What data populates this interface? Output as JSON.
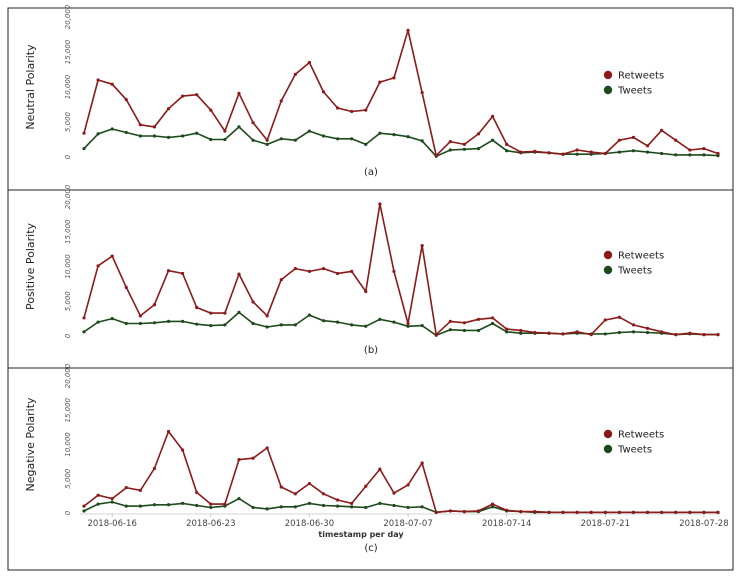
{
  "chart_data": [
    {
      "type": "line",
      "caption": "(a)",
      "ylabel": "Neutral Polarity",
      "xlabel": "",
      "ylim": [
        0,
        20000
      ],
      "yticks": [
        "0",
        "5,000",
        "10,000",
        "15,000",
        "20,000"
      ],
      "ytick_values": [
        0,
        5000,
        10000,
        15000,
        20000
      ],
      "legend": [
        "Retweets",
        "Tweets"
      ],
      "series": [
        {
          "name": "Retweets",
          "color": "#8b1a1a",
          "values": [
            3400,
            11000,
            10400,
            8200,
            4600,
            4300,
            6900,
            8700,
            8900,
            6700,
            3700,
            9100,
            4900,
            2400,
            8000,
            11800,
            13500,
            9300,
            7000,
            6500,
            6700,
            10700,
            11300,
            18100,
            9200,
            200,
            2200,
            1800,
            3300,
            5800,
            1800,
            700,
            800,
            600,
            400,
            1000,
            700,
            500,
            2400,
            2800,
            1600,
            3800,
            2400,
            1000,
            1200,
            500
          ]
        },
        {
          "name": "Tweets",
          "color": "#1d4a1d",
          "values": [
            1200,
            3300,
            4000,
            3500,
            3000,
            3000,
            2800,
            3000,
            3400,
            2500,
            2500,
            4300,
            2400,
            1800,
            2600,
            2400,
            3700,
            3000,
            2600,
            2600,
            1800,
            3400,
            3200,
            2900,
            2300,
            100,
            1000,
            1100,
            1200,
            2400,
            900,
            600,
            700,
            600,
            400,
            400,
            400,
            500,
            700,
            900,
            700,
            500,
            300,
            300,
            300,
            200
          ]
        }
      ]
    },
    {
      "type": "line",
      "caption": "(b)",
      "ylabel": "Positive Polarity",
      "xlabel": "",
      "ylim": [
        0,
        20000
      ],
      "yticks": [
        "0",
        "5,000",
        "10,000",
        "15,000",
        "20,000"
      ],
      "ytick_values": [
        0,
        5000,
        10000,
        15000,
        20000
      ],
      "legend": [
        "Retweets",
        "Tweets"
      ],
      "series": [
        {
          "name": "Retweets",
          "color": "#8b1a1a",
          "values": [
            2600,
            10100,
            11500,
            7000,
            2900,
            4500,
            9400,
            9000,
            4100,
            3300,
            3300,
            8900,
            4900,
            2900,
            8100,
            9700,
            9300,
            9700,
            9000,
            9300,
            6400,
            19000,
            9300,
            1800,
            13000,
            200,
            2100,
            1900,
            2400,
            2600,
            1000,
            800,
            500,
            400,
            300,
            600,
            200,
            2300,
            2700,
            1600,
            1100,
            600,
            200,
            400,
            200,
            200
          ]
        },
        {
          "name": "Tweets",
          "color": "#1d4a1d",
          "values": [
            600,
            2000,
            2500,
            1800,
            1800,
            1900,
            2100,
            2100,
            1700,
            1500,
            1600,
            3400,
            1800,
            1300,
            1600,
            1600,
            3000,
            2200,
            2000,
            1600,
            1400,
            2400,
            2000,
            1400,
            1500,
            100,
            900,
            800,
            800,
            1800,
            600,
            400,
            400,
            400,
            300,
            400,
            300,
            300,
            500,
            600,
            500,
            400,
            200,
            300,
            200,
            200
          ]
        }
      ]
    },
    {
      "type": "line",
      "caption": "(c)",
      "ylabel": "Negative Polarity",
      "xlabel": "timestamp per day",
      "ylim": [
        0,
        20000
      ],
      "yticks": [
        "0",
        "5,000",
        "10,000",
        "15,000",
        "20,000"
      ],
      "ytick_values": [
        0,
        5000,
        10000,
        15000,
        20000
      ],
      "xtick_labels": [
        "2018-06-16",
        "2018-06-23",
        "2018-06-30",
        "2018-07-07",
        "2018-07-14",
        "2018-07-21",
        "2018-07-28"
      ],
      "xtick_index": [
        2,
        9,
        16,
        23,
        30,
        37,
        44
      ],
      "legend": [
        "Retweets",
        "Tweets"
      ],
      "series": [
        {
          "name": "Retweets",
          "color": "#8b1a1a",
          "values": [
            1000,
            2600,
            2100,
            3700,
            3300,
            6500,
            11900,
            9200,
            3000,
            1300,
            1300,
            7800,
            8000,
            9500,
            3800,
            2800,
            4300,
            2800,
            1900,
            1400,
            3900,
            6400,
            2900,
            4100,
            7300,
            100,
            300,
            200,
            300,
            1300,
            400,
            200,
            200,
            100,
            100,
            100,
            100,
            100,
            100,
            100,
            100,
            100,
            100,
            100,
            100,
            100
          ]
        },
        {
          "name": "Tweets",
          "color": "#1d4a1d",
          "values": [
            300,
            1300,
            1600,
            1000,
            1000,
            1200,
            1200,
            1400,
            1100,
            800,
            1000,
            2100,
            800,
            600,
            900,
            900,
            1400,
            1100,
            1000,
            900,
            800,
            1400,
            1100,
            800,
            900,
            100,
            300,
            200,
            200,
            900,
            300,
            200,
            100,
            100,
            100,
            100,
            100,
            100,
            100,
            100,
            100,
            100,
            100,
            100,
            100,
            100
          ]
        }
      ]
    }
  ]
}
